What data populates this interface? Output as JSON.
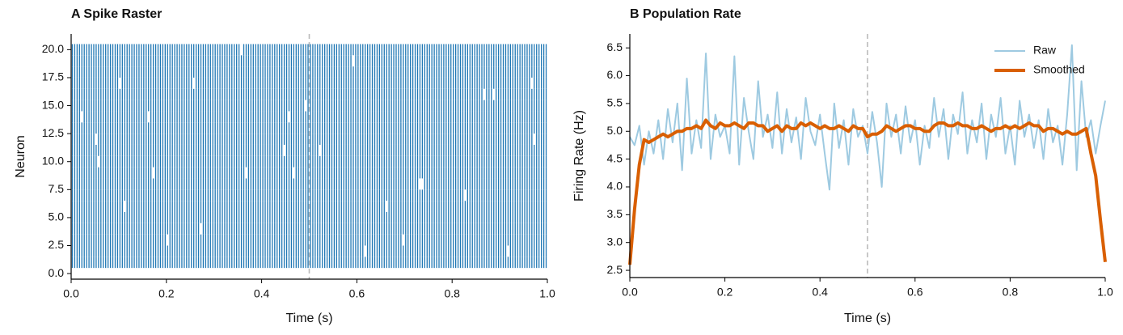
{
  "chart_data": [
    {
      "type": "raster",
      "title": "A  Spike Raster",
      "xlabel": "Time (s)",
      "ylabel": "Neuron",
      "color": "#1f77b4",
      "xlim": [
        0,
        1
      ],
      "ylim": [
        -0.5,
        21.4
      ],
      "xticks": [
        {
          "value": 0,
          "label": "0.0"
        },
        0.2,
        0.4,
        0.6,
        0.8,
        {
          "value": 1,
          "label": "1.0"
        }
      ],
      "yticks": [
        {
          "value": 0,
          "label": "0.0"
        },
        2.5,
        {
          "value": 5,
          "label": "5.0"
        },
        7.5,
        {
          "value": 10,
          "label": "10.0"
        },
        12.5,
        {
          "value": 15,
          "label": "15.0"
        },
        17.5,
        {
          "value": 20,
          "label": "20.0"
        }
      ],
      "vline": 0.5,
      "neurons": [
        1,
        2,
        3,
        4,
        5,
        6,
        7,
        8,
        9,
        10,
        11,
        12,
        13,
        14,
        15,
        16,
        17,
        18,
        19,
        20
      ],
      "x": [
        0.0025,
        0.0075,
        0.0125,
        0.0175,
        0.0225,
        0.0275,
        0.0325,
        0.0375,
        0.0425,
        0.0475,
        0.0525,
        0.0575,
        0.0625,
        0.0675,
        0.0725,
        0.0775,
        0.0825,
        0.0875,
        0.0925,
        0.0975,
        0.1025,
        0.1075,
        0.1125,
        0.1175,
        0.1225,
        0.1275,
        0.1325,
        0.1375,
        0.1425,
        0.1475,
        0.1525,
        0.1575,
        0.1625,
        0.1675,
        0.1725,
        0.1775,
        0.1825,
        0.1875,
        0.1925,
        0.1975,
        0.2025,
        0.2075,
        0.2125,
        0.2175,
        0.2225,
        0.2275,
        0.2325,
        0.2375,
        0.2425,
        0.2475,
        0.2525,
        0.2575,
        0.2625,
        0.2675,
        0.2725,
        0.2775,
        0.2825,
        0.2875,
        0.2925,
        0.2975,
        0.3025,
        0.3075,
        0.3125,
        0.3175,
        0.3225,
        0.3275,
        0.3325,
        0.3375,
        0.3425,
        0.3475,
        0.3525,
        0.3575,
        0.3625,
        0.3675,
        0.3725,
        0.3775,
        0.3825,
        0.3875,
        0.3925,
        0.3975,
        0.4025,
        0.4075,
        0.4125,
        0.4175,
        0.4225,
        0.4275,
        0.4325,
        0.4375,
        0.4425,
        0.4475,
        0.4525,
        0.4575,
        0.4625,
        0.4675,
        0.4725,
        0.4775,
        0.4825,
        0.4875,
        0.4925,
        0.4975,
        0.5025,
        0.5075,
        0.5125,
        0.5175,
        0.5225,
        0.5275,
        0.5325,
        0.5375,
        0.5425,
        0.5475,
        0.5525,
        0.5575,
        0.5625,
        0.5675,
        0.5725,
        0.5775,
        0.5825,
        0.5875,
        0.5925,
        0.5975,
        0.6025,
        0.6075,
        0.6125,
        0.6175,
        0.6225,
        0.6275,
        0.6325,
        0.6375,
        0.6425,
        0.6475,
        0.6525,
        0.6575,
        0.6625,
        0.6675,
        0.6725,
        0.6775,
        0.6825,
        0.6875,
        0.6925,
        0.6975,
        0.7025,
        0.7075,
        0.7125,
        0.7175,
        0.7225,
        0.7275,
        0.7325,
        0.7375,
        0.7425,
        0.7475,
        0.7525,
        0.7575,
        0.7625,
        0.7675,
        0.7725,
        0.7775,
        0.7825,
        0.7875,
        0.7925,
        0.7975,
        0.8025,
        0.8075,
        0.8125,
        0.8175,
        0.8225,
        0.8275,
        0.8325,
        0.8375,
        0.8425,
        0.8475,
        0.8525,
        0.8575,
        0.8625,
        0.8675,
        0.8725,
        0.8775,
        0.8825,
        0.8875,
        0.8925,
        0.8975,
        0.9025,
        0.9075,
        0.9125,
        0.9175,
        0.9225,
        0.9275,
        0.9325,
        0.9375,
        0.9425,
        0.9475,
        0.9525,
        0.9575,
        0.9625,
        0.9675,
        0.9725,
        0.9775,
        0.9825,
        0.9875,
        0.9925,
        0.9975
      ],
      "missing": [
        [
          0.3575,
          20
        ],
        [
          0.5925,
          19
        ],
        [
          0.1025,
          17
        ],
        [
          0.2575,
          17
        ],
        [
          0.9675,
          17
        ],
        [
          0.8675,
          16
        ],
        [
          0.8875,
          16
        ],
        [
          0.4925,
          15
        ],
        [
          0.0225,
          14
        ],
        [
          0.1625,
          14
        ],
        [
          0.4575,
          14
        ],
        [
          0.0525,
          12
        ],
        [
          0.9725,
          12
        ],
        [
          0.4475,
          11
        ],
        [
          0.5225,
          11
        ],
        [
          0.0575,
          10
        ],
        [
          0.1725,
          9
        ],
        [
          0.3675,
          9
        ],
        [
          0.4675,
          9
        ],
        [
          0.7325,
          8
        ],
        [
          0.7375,
          8
        ],
        [
          0.8275,
          7
        ],
        [
          0.1125,
          6
        ],
        [
          0.6625,
          6
        ],
        [
          0.2725,
          4
        ],
        [
          0.2025,
          3
        ],
        [
          0.6975,
          3
        ],
        [
          0.6175,
          2
        ],
        [
          0.9175,
          2
        ]
      ]
    },
    {
      "type": "line",
      "title": "B  Population Rate",
      "xlabel": "Time (s)",
      "ylabel": "Firing Rate (Hz)",
      "xlim": [
        0,
        1
      ],
      "ylim": [
        2.37,
        6.75
      ],
      "xticks": [
        {
          "value": 0,
          "label": "0.0"
        },
        0.2,
        0.4,
        0.6,
        0.8,
        {
          "value": 1,
          "label": "1.0"
        }
      ],
      "yticks": [
        2.5,
        {
          "value": 3,
          "label": "3.0"
        },
        3.5,
        {
          "value": 4,
          "label": "4.0"
        },
        4.5,
        {
          "value": 5,
          "label": "5.0"
        },
        5.5,
        {
          "value": 6,
          "label": "6.0"
        },
        6.5
      ],
      "vline": 0.5,
      "legend": "upper right",
      "x": [
        0,
        0.01,
        0.02,
        0.03,
        0.04,
        0.05,
        0.06,
        0.07,
        0.08,
        0.09,
        0.1,
        0.11,
        0.12,
        0.13,
        0.14,
        0.15,
        0.16,
        0.17,
        0.18,
        0.19,
        0.2,
        0.21,
        0.22,
        0.23,
        0.24,
        0.25,
        0.26,
        0.27,
        0.28,
        0.29,
        0.3,
        0.31,
        0.32,
        0.33,
        0.34,
        0.35,
        0.36,
        0.37,
        0.38,
        0.39,
        0.4,
        0.41,
        0.42,
        0.43,
        0.44,
        0.45,
        0.46,
        0.47,
        0.48,
        0.49,
        0.5,
        0.51,
        0.52,
        0.53,
        0.54,
        0.55,
        0.56,
        0.57,
        0.58,
        0.59,
        0.6,
        0.61,
        0.62,
        0.63,
        0.64,
        0.65,
        0.66,
        0.67,
        0.68,
        0.69,
        0.7,
        0.71,
        0.72,
        0.73,
        0.74,
        0.75,
        0.76,
        0.77,
        0.78,
        0.79,
        0.8,
        0.81,
        0.82,
        0.83,
        0.84,
        0.85,
        0.86,
        0.87,
        0.88,
        0.89,
        0.9,
        0.91,
        0.92,
        0.93,
        0.94,
        0.95,
        0.96,
        0.97,
        0.98,
        0.99,
        1
      ],
      "series": [
        {
          "name": "Raw",
          "color": "#9ecae1",
          "width": 2,
          "values": [
            4.9,
            4.75,
            5.1,
            4.4,
            5.0,
            4.6,
            5.2,
            4.5,
            5.4,
            4.8,
            5.5,
            4.3,
            5.95,
            4.6,
            5.2,
            4.7,
            6.4,
            4.5,
            5.3,
            4.9,
            5.1,
            4.6,
            6.35,
            4.4,
            5.6,
            5.0,
            4.5,
            5.9,
            4.9,
            5.3,
            4.7,
            5.7,
            4.6,
            5.4,
            4.8,
            5.25,
            4.5,
            5.6,
            5.0,
            4.75,
            5.3,
            4.6,
            3.95,
            5.5,
            4.7,
            5.2,
            4.4,
            5.4,
            4.9,
            5.1,
            4.6,
            5.35,
            4.8,
            4.0,
            5.5,
            4.9,
            5.3,
            4.6,
            5.45,
            4.8,
            5.2,
            4.4,
            5.1,
            4.7,
            5.6,
            4.9,
            5.4,
            4.5,
            5.3,
            4.95,
            5.7,
            4.6,
            5.2,
            4.8,
            5.5,
            4.5,
            5.3,
            4.9,
            5.6,
            4.6,
            5.1,
            4.4,
            5.55,
            4.9,
            5.3,
            4.7,
            5.2,
            4.5,
            5.4,
            4.8,
            5.1,
            4.4,
            5.3,
            6.55,
            4.3,
            5.9,
            4.9,
            5.2,
            4.6,
            5.1,
            5.55
          ]
        },
        {
          "name": "Smoothed",
          "color": "#d95f02",
          "width": 4,
          "values": [
            2.6,
            3.6,
            4.4,
            4.85,
            4.8,
            4.85,
            4.9,
            4.95,
            4.9,
            4.95,
            5.0,
            5.0,
            5.05,
            5.05,
            5.1,
            5.05,
            5.2,
            5.1,
            5.05,
            5.15,
            5.1,
            5.1,
            5.15,
            5.1,
            5.05,
            5.15,
            5.15,
            5.1,
            5.1,
            5.0,
            5.05,
            5.1,
            5.0,
            5.1,
            5.05,
            5.05,
            5.15,
            5.1,
            5.15,
            5.1,
            5.05,
            5.1,
            5.05,
            5.05,
            5.1,
            5.05,
            5.0,
            5.1,
            5.05,
            5.05,
            4.9,
            4.95,
            4.95,
            5.0,
            5.1,
            5.05,
            5.0,
            5.05,
            5.1,
            5.1,
            5.05,
            5.05,
            5.0,
            5.0,
            5.1,
            5.15,
            5.15,
            5.1,
            5.1,
            5.15,
            5.1,
            5.1,
            5.05,
            5.05,
            5.1,
            5.05,
            5.0,
            5.05,
            5.05,
            5.1,
            5.05,
            5.1,
            5.05,
            5.1,
            5.15,
            5.1,
            5.1,
            5.0,
            5.05,
            5.05,
            5.0,
            4.95,
            5.0,
            4.95,
            4.95,
            5.0,
            5.05,
            4.6,
            4.2,
            3.4,
            2.65
          ]
        }
      ]
    }
  ]
}
